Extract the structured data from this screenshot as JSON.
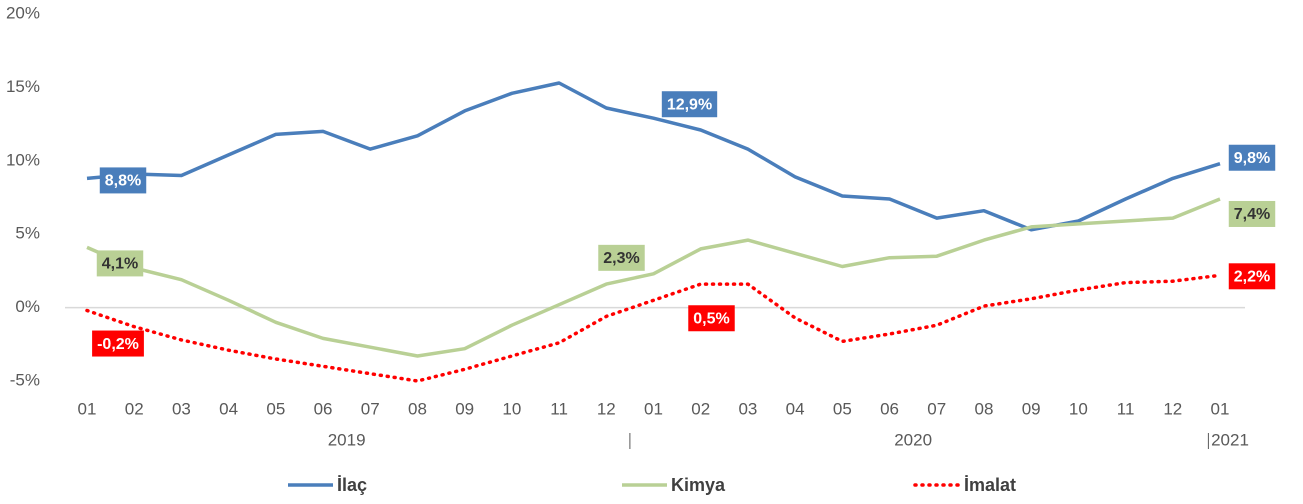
{
  "chart_data": {
    "type": "line",
    "categories": [
      "01",
      "02",
      "03",
      "04",
      "05",
      "06",
      "07",
      "08",
      "09",
      "10",
      "11",
      "12",
      "01",
      "02",
      "03",
      "04",
      "05",
      "06",
      "07",
      "08",
      "09",
      "10",
      "11",
      "12",
      "01"
    ],
    "x_groups": [
      "2019",
      "2020",
      "2021"
    ],
    "ylim": [
      -5,
      20
    ],
    "yticks": [
      {
        "value": -5,
        "label": "-5%"
      },
      {
        "value": 0,
        "label": "0%"
      },
      {
        "value": 5,
        "label": "5%"
      },
      {
        "value": 10,
        "label": "10%"
      },
      {
        "value": 15,
        "label": "15%"
      },
      {
        "value": 20,
        "label": "20%"
      }
    ],
    "zero_line": true,
    "legend": "bottom",
    "series": [
      {
        "name": "İlaç",
        "color": "#4a7ebb",
        "style": "solid",
        "values": [
          8.8,
          9.1,
          9.0,
          10.4,
          11.8,
          12.0,
          10.8,
          11.7,
          13.4,
          14.6,
          15.3,
          13.6,
          12.9,
          12.1,
          10.8,
          8.9,
          7.6,
          7.4,
          6.1,
          6.6,
          5.3,
          5.9,
          7.4,
          8.8,
          9.8
        ],
        "value_labels": [
          "8,8%",
          null,
          null,
          null,
          null,
          null,
          null,
          null,
          null,
          null,
          null,
          null,
          "12,9%",
          null,
          null,
          null,
          null,
          null,
          null,
          null,
          null,
          null,
          null,
          null,
          "9,8%"
        ]
      },
      {
        "name": "Kimya",
        "color": "#b9d095",
        "style": "solid",
        "values": [
          4.1,
          2.7,
          1.9,
          0.5,
          -1.0,
          -2.1,
          -2.7,
          -3.3,
          -2.8,
          -1.2,
          0.2,
          1.6,
          2.3,
          4.0,
          4.6,
          3.7,
          2.8,
          3.4,
          3.5,
          4.6,
          5.5,
          5.7,
          5.9,
          6.1,
          7.4
        ],
        "value_labels": [
          "4,1%",
          null,
          null,
          null,
          null,
          null,
          null,
          null,
          null,
          null,
          null,
          null,
          "2,3%",
          null,
          null,
          null,
          null,
          null,
          null,
          null,
          null,
          null,
          null,
          null,
          "7,4%"
        ]
      },
      {
        "name": "İmalat",
        "color": "#ff0000",
        "style": "dotted",
        "values": [
          -0.2,
          -1.3,
          -2.2,
          -2.9,
          -3.5,
          -4.0,
          -4.5,
          -5.0,
          -4.2,
          -3.3,
          -2.4,
          -0.6,
          0.5,
          1.6,
          1.6,
          -0.7,
          -2.3,
          -1.8,
          -1.2,
          0.1,
          0.6,
          1.2,
          1.7,
          1.8,
          2.2
        ],
        "value_labels": [
          "-0,2%",
          null,
          null,
          null,
          null,
          null,
          null,
          null,
          null,
          null,
          null,
          null,
          "0,5%",
          null,
          null,
          null,
          null,
          null,
          null,
          null,
          null,
          null,
          null,
          null,
          "2,2%"
        ]
      }
    ]
  }
}
